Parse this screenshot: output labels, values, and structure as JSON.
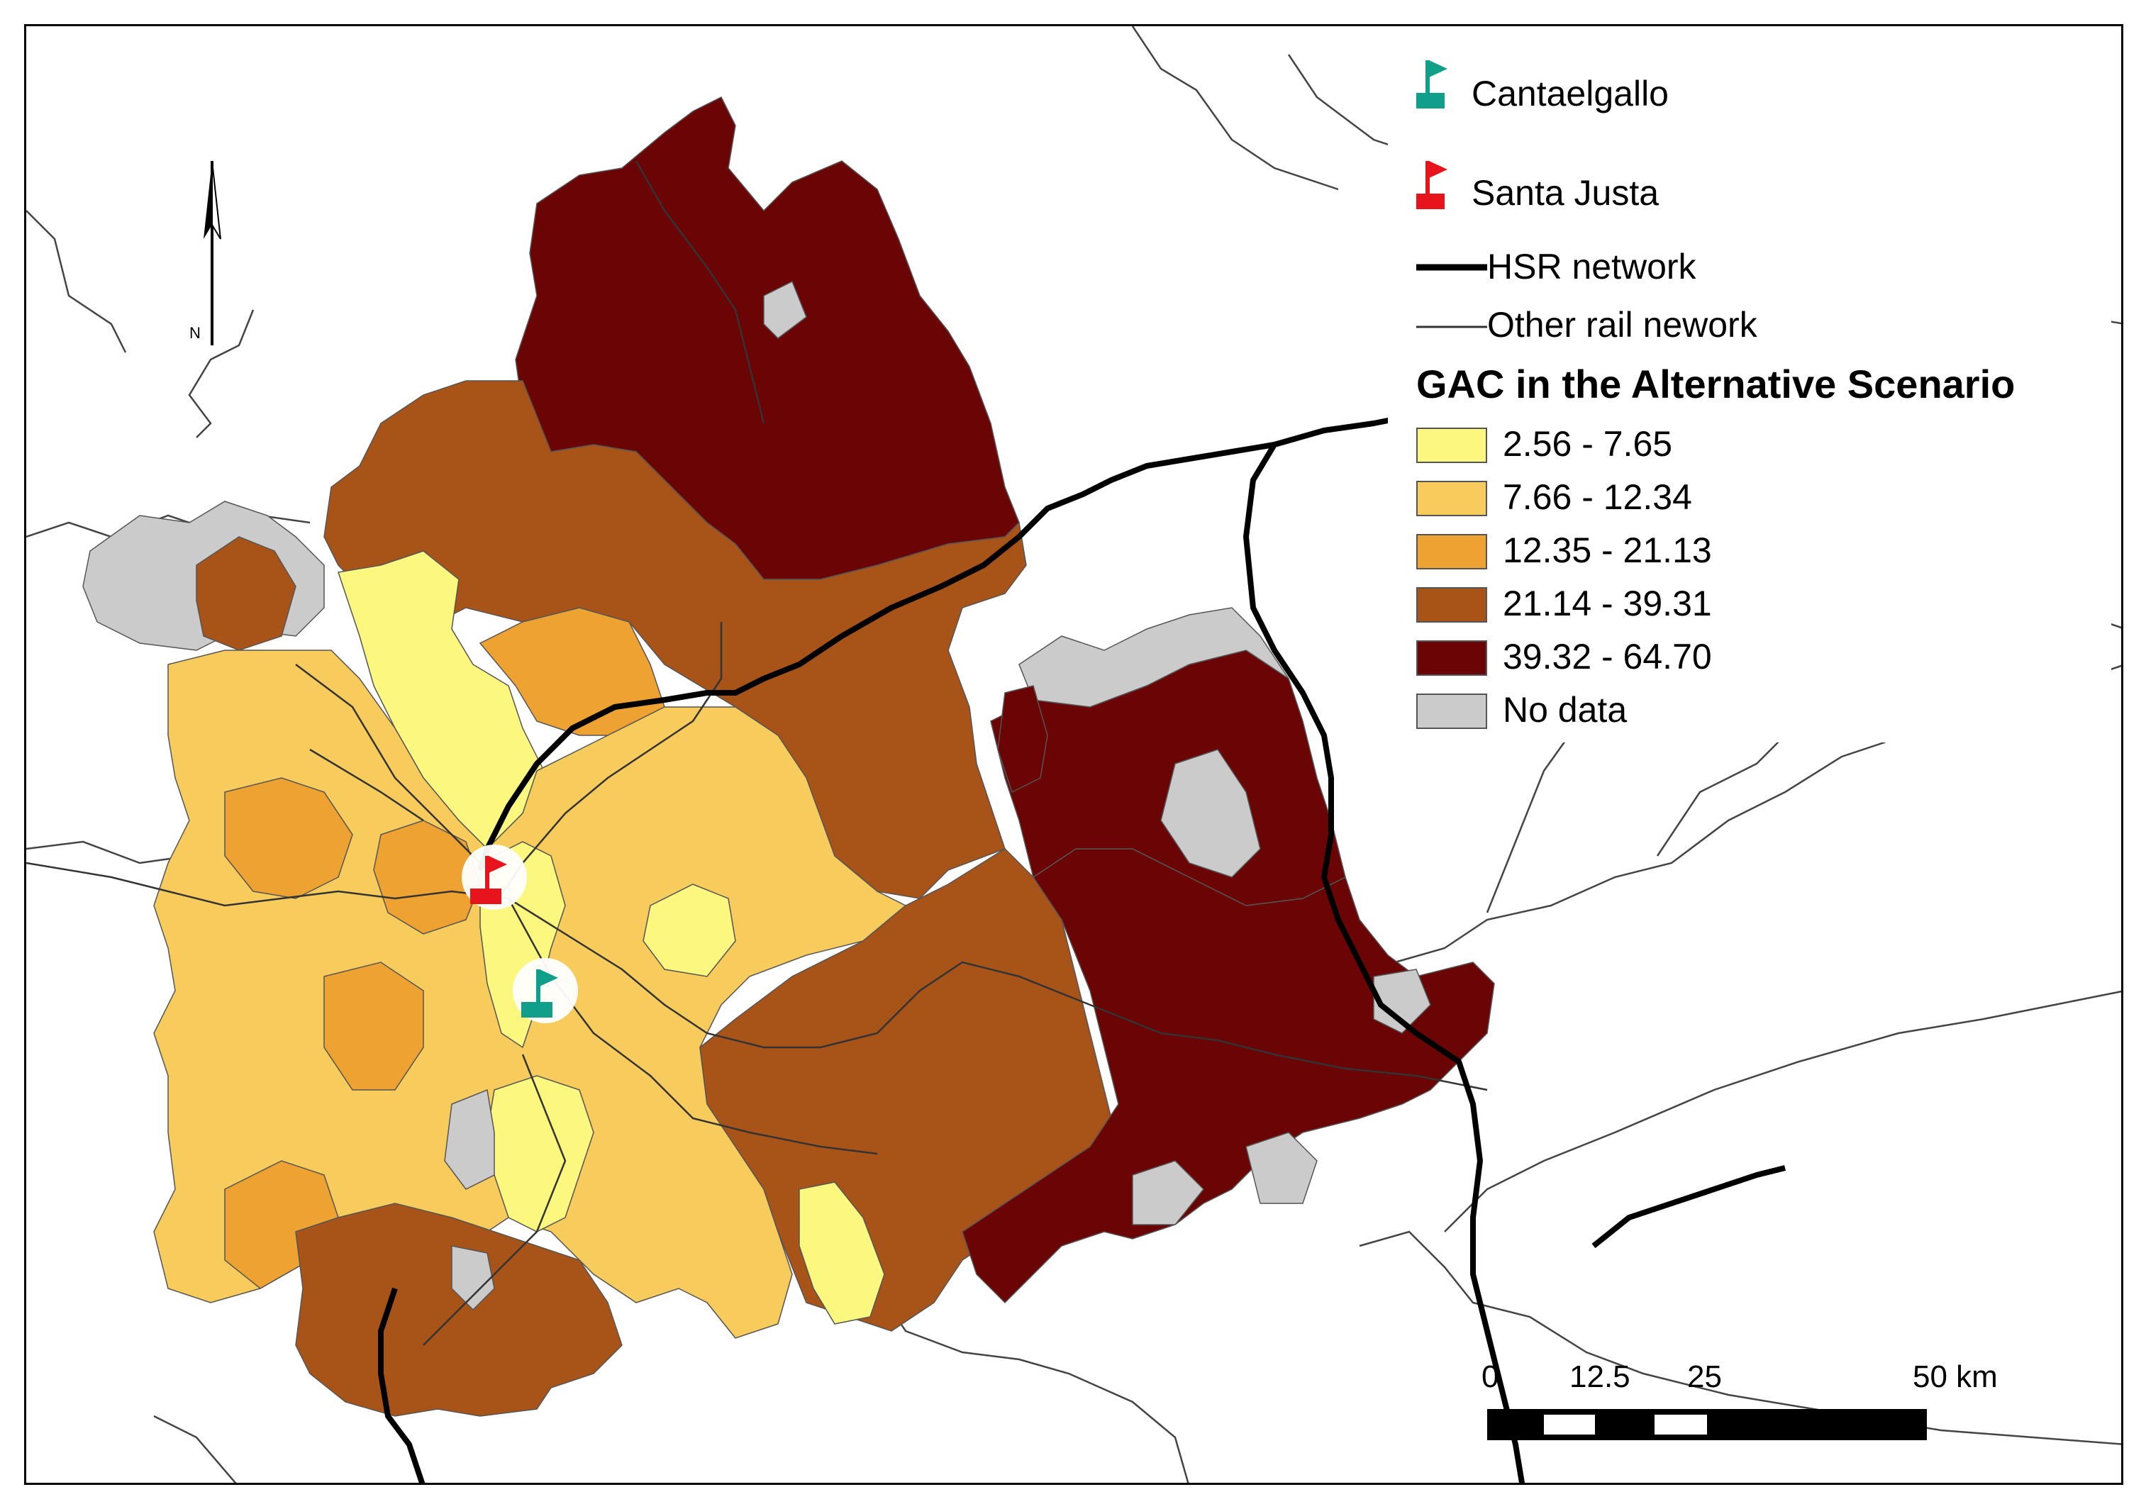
{
  "legend": {
    "stations": [
      {
        "label": "Cantaelgallo",
        "icon": "flag-icon",
        "color": "#10a08a"
      },
      {
        "label": "Santa Justa",
        "icon": "flag-icon",
        "color": "#e8141c"
      }
    ],
    "lines": [
      {
        "label": "HSR network"
      },
      {
        "label": "Other rail nework"
      }
    ],
    "title": "GAC in the Alternative Scenario",
    "classes": [
      {
        "label": "2.56 - 7.65",
        "color": "#fcf77e"
      },
      {
        "label": "7.66 - 12.34",
        "color": "#f8cc5c"
      },
      {
        "label": "12.35 - 21.13",
        "color": "#eda232"
      },
      {
        "label": "21.14 - 39.31",
        "color": "#a85418"
      },
      {
        "label": "39.32 - 64.70",
        "color": "#6b0404"
      },
      {
        "label": "No data",
        "color": "#cbcbcb"
      }
    ]
  },
  "scale_bar": {
    "labels": [
      "0",
      "12.5",
      "25",
      "50 km"
    ]
  },
  "north_arrow": {
    "label": "N",
    "icon": "north-arrow-icon"
  }
}
